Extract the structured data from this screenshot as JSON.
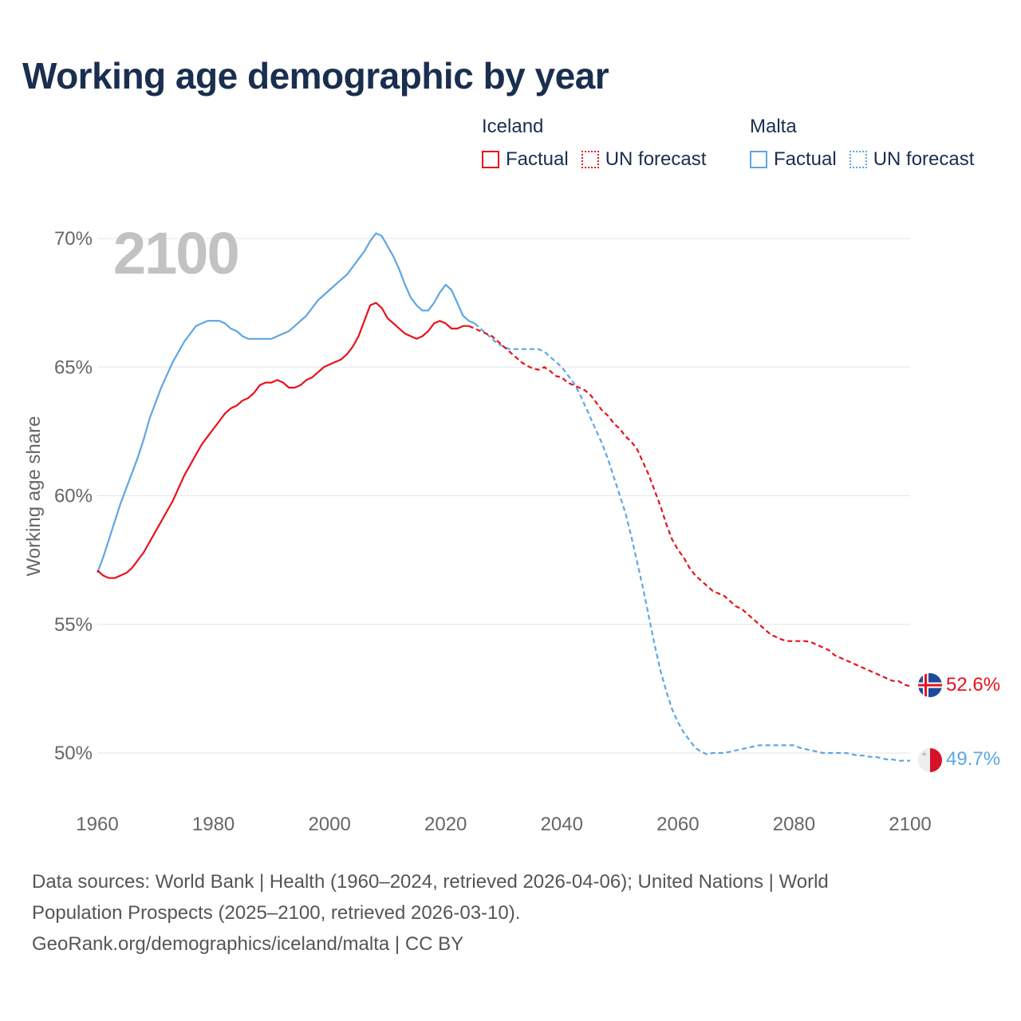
{
  "title": "Working age demographic by year",
  "legend": {
    "groups": [
      {
        "name": "Iceland",
        "color": "#e8111b",
        "items": [
          {
            "label": "Factual",
            "style": "solid"
          },
          {
            "label": "UN forecast",
            "style": "dotted"
          }
        ]
      },
      {
        "name": "Malta",
        "color": "#5ea6e3",
        "items": [
          {
            "label": "Factual",
            "style": "solid"
          },
          {
            "label": "UN forecast",
            "style": "dotted"
          }
        ]
      }
    ]
  },
  "year_watermark": "2100",
  "footer": {
    "line1": "Data sources: World Bank | Health (1960–2024, retrieved 2026-04-06); United Nations | World",
    "line2": "Population Prospects (2025–2100, retrieved 2026-03-10).",
    "line3": "GeoRank.org/demographics/iceland/malta | CC BY"
  },
  "chart_data": {
    "type": "line",
    "title": "Working age demographic by year",
    "xlabel": "",
    "ylabel": "Working age share",
    "xlim": [
      1960,
      2100
    ],
    "ylim": [
      48.5,
      71
    ],
    "x_ticks": [
      1960,
      1980,
      2000,
      2020,
      2040,
      2060,
      2080,
      2100
    ],
    "y_ticks": [
      50,
      55,
      60,
      65,
      70
    ],
    "y_tick_labels": [
      "50%",
      "55%",
      "60%",
      "65%",
      "70%"
    ],
    "grid": true,
    "forecast_start": 2025,
    "series": [
      {
        "name": "Iceland",
        "color": "#e8111b",
        "end_label": "52.6%",
        "factual": [
          [
            1960,
            57.1
          ],
          [
            1961,
            56.9
          ],
          [
            1962,
            56.8
          ],
          [
            1963,
            56.8
          ],
          [
            1964,
            56.9
          ],
          [
            1965,
            57.0
          ],
          [
            1966,
            57.2
          ],
          [
            1967,
            57.5
          ],
          [
            1968,
            57.8
          ],
          [
            1969,
            58.2
          ],
          [
            1970,
            58.6
          ],
          [
            1971,
            59.0
          ],
          [
            1972,
            59.4
          ],
          [
            1973,
            59.8
          ],
          [
            1974,
            60.3
          ],
          [
            1975,
            60.8
          ],
          [
            1976,
            61.2
          ],
          [
            1977,
            61.6
          ],
          [
            1978,
            62.0
          ],
          [
            1979,
            62.3
          ],
          [
            1980,
            62.6
          ],
          [
            1981,
            62.9
          ],
          [
            1982,
            63.2
          ],
          [
            1983,
            63.4
          ],
          [
            1984,
            63.5
          ],
          [
            1985,
            63.7
          ],
          [
            1986,
            63.8
          ],
          [
            1987,
            64.0
          ],
          [
            1988,
            64.3
          ],
          [
            1989,
            64.4
          ],
          [
            1990,
            64.4
          ],
          [
            1991,
            64.5
          ],
          [
            1992,
            64.4
          ],
          [
            1993,
            64.2
          ],
          [
            1994,
            64.2
          ],
          [
            1995,
            64.3
          ],
          [
            1996,
            64.5
          ],
          [
            1997,
            64.6
          ],
          [
            1998,
            64.8
          ],
          [
            1999,
            65.0
          ],
          [
            2000,
            65.1
          ],
          [
            2001,
            65.2
          ],
          [
            2002,
            65.3
          ],
          [
            2003,
            65.5
          ],
          [
            2004,
            65.8
          ],
          [
            2005,
            66.2
          ],
          [
            2006,
            66.8
          ],
          [
            2007,
            67.4
          ],
          [
            2008,
            67.5
          ],
          [
            2009,
            67.3
          ],
          [
            2010,
            66.9
          ],
          [
            2011,
            66.7
          ],
          [
            2012,
            66.5
          ],
          [
            2013,
            66.3
          ],
          [
            2014,
            66.2
          ],
          [
            2015,
            66.1
          ],
          [
            2016,
            66.2
          ],
          [
            2017,
            66.4
          ],
          [
            2018,
            66.7
          ],
          [
            2019,
            66.8
          ],
          [
            2020,
            66.7
          ],
          [
            2021,
            66.5
          ],
          [
            2022,
            66.5
          ],
          [
            2023,
            66.6
          ],
          [
            2024,
            66.6
          ]
        ],
        "forecast": [
          [
            2024,
            66.6
          ],
          [
            2025,
            66.5
          ],
          [
            2026,
            66.4
          ],
          [
            2027,
            66.3
          ],
          [
            2028,
            66.2
          ],
          [
            2029,
            66.0
          ],
          [
            2030,
            65.8
          ],
          [
            2031,
            65.6
          ],
          [
            2032,
            65.4
          ],
          [
            2033,
            65.2
          ],
          [
            2034,
            65.05
          ],
          [
            2035,
            64.95
          ],
          [
            2036,
            64.9
          ],
          [
            2037,
            65.0
          ],
          [
            2038,
            64.85
          ],
          [
            2039,
            64.65
          ],
          [
            2040,
            64.6
          ],
          [
            2041,
            64.4
          ],
          [
            2042,
            64.3
          ],
          [
            2043,
            64.2
          ],
          [
            2044,
            64.1
          ],
          [
            2045,
            63.9
          ],
          [
            2046,
            63.6
          ],
          [
            2047,
            63.3
          ],
          [
            2048,
            63.1
          ],
          [
            2049,
            62.8
          ],
          [
            2050,
            62.6
          ],
          [
            2051,
            62.3
          ],
          [
            2052,
            62.1
          ],
          [
            2053,
            61.8
          ],
          [
            2054,
            61.3
          ],
          [
            2055,
            60.8
          ],
          [
            2056,
            60.2
          ],
          [
            2057,
            59.6
          ],
          [
            2058,
            58.9
          ],
          [
            2059,
            58.3
          ],
          [
            2060,
            57.9
          ],
          [
            2061,
            57.6
          ],
          [
            2062,
            57.2
          ],
          [
            2063,
            56.9
          ],
          [
            2064,
            56.7
          ],
          [
            2065,
            56.5
          ],
          [
            2066,
            56.3
          ],
          [
            2067,
            56.2
          ],
          [
            2068,
            56.1
          ],
          [
            2069,
            55.9
          ],
          [
            2070,
            55.7
          ],
          [
            2071,
            55.6
          ],
          [
            2072,
            55.4
          ],
          [
            2073,
            55.2
          ],
          [
            2074,
            55.0
          ],
          [
            2075,
            54.8
          ],
          [
            2076,
            54.6
          ],
          [
            2077,
            54.5
          ],
          [
            2078,
            54.4
          ],
          [
            2079,
            54.35
          ],
          [
            2080,
            54.35
          ],
          [
            2081,
            54.35
          ],
          [
            2082,
            54.35
          ],
          [
            2083,
            54.3
          ],
          [
            2084,
            54.2
          ],
          [
            2085,
            54.1
          ],
          [
            2086,
            54.0
          ],
          [
            2087,
            53.8
          ],
          [
            2088,
            53.7
          ],
          [
            2089,
            53.6
          ],
          [
            2090,
            53.5
          ],
          [
            2091,
            53.4
          ],
          [
            2092,
            53.3
          ],
          [
            2093,
            53.2
          ],
          [
            2094,
            53.1
          ],
          [
            2095,
            53.0
          ],
          [
            2096,
            52.9
          ],
          [
            2097,
            52.8
          ],
          [
            2098,
            52.8
          ],
          [
            2099,
            52.65
          ],
          [
            2100,
            52.6
          ]
        ]
      },
      {
        "name": "Malta",
        "color": "#5ea6e3",
        "end_label": "49.7%",
        "factual": [
          [
            1960,
            57.0
          ],
          [
            1961,
            57.6
          ],
          [
            1962,
            58.3
          ],
          [
            1963,
            59.0
          ],
          [
            1964,
            59.7
          ],
          [
            1965,
            60.3
          ],
          [
            1966,
            60.9
          ],
          [
            1967,
            61.5
          ],
          [
            1968,
            62.2
          ],
          [
            1969,
            63.0
          ],
          [
            1970,
            63.6
          ],
          [
            1971,
            64.2
          ],
          [
            1972,
            64.7
          ],
          [
            1973,
            65.2
          ],
          [
            1974,
            65.6
          ],
          [
            1975,
            66.0
          ],
          [
            1976,
            66.3
          ],
          [
            1977,
            66.6
          ],
          [
            1978,
            66.7
          ],
          [
            1979,
            66.8
          ],
          [
            1980,
            66.8
          ],
          [
            1981,
            66.8
          ],
          [
            1982,
            66.7
          ],
          [
            1983,
            66.5
          ],
          [
            1984,
            66.4
          ],
          [
            1985,
            66.2
          ],
          [
            1986,
            66.1
          ],
          [
            1987,
            66.1
          ],
          [
            1988,
            66.1
          ],
          [
            1989,
            66.1
          ],
          [
            1990,
            66.1
          ],
          [
            1991,
            66.2
          ],
          [
            1992,
            66.3
          ],
          [
            1993,
            66.4
          ],
          [
            1994,
            66.6
          ],
          [
            1995,
            66.8
          ],
          [
            1996,
            67.0
          ],
          [
            1997,
            67.3
          ],
          [
            1998,
            67.6
          ],
          [
            1999,
            67.8
          ],
          [
            2000,
            68.0
          ],
          [
            2001,
            68.2
          ],
          [
            2002,
            68.4
          ],
          [
            2003,
            68.6
          ],
          [
            2004,
            68.9
          ],
          [
            2005,
            69.2
          ],
          [
            2006,
            69.5
          ],
          [
            2007,
            69.9
          ],
          [
            2008,
            70.2
          ],
          [
            2009,
            70.1
          ],
          [
            2010,
            69.7
          ],
          [
            2011,
            69.3
          ],
          [
            2012,
            68.8
          ],
          [
            2013,
            68.2
          ],
          [
            2014,
            67.7
          ],
          [
            2015,
            67.4
          ],
          [
            2016,
            67.2
          ],
          [
            2017,
            67.2
          ],
          [
            2018,
            67.5
          ],
          [
            2019,
            67.9
          ],
          [
            2020,
            68.2
          ],
          [
            2021,
            68.0
          ],
          [
            2022,
            67.5
          ],
          [
            2023,
            67.0
          ],
          [
            2024,
            66.8
          ],
          [
            2025,
            66.7
          ]
        ],
        "forecast": [
          [
            2025,
            66.7
          ],
          [
            2026,
            66.5
          ],
          [
            2027,
            66.3
          ],
          [
            2028,
            66.1
          ],
          [
            2029,
            65.9
          ],
          [
            2030,
            65.8
          ],
          [
            2031,
            65.7
          ],
          [
            2032,
            65.7
          ],
          [
            2033,
            65.7
          ],
          [
            2034,
            65.7
          ],
          [
            2035,
            65.7
          ],
          [
            2036,
            65.7
          ],
          [
            2037,
            65.6
          ],
          [
            2038,
            65.4
          ],
          [
            2039,
            65.2
          ],
          [
            2040,
            65.0
          ],
          [
            2041,
            64.7
          ],
          [
            2042,
            64.4
          ],
          [
            2043,
            64.0
          ],
          [
            2044,
            63.5
          ],
          [
            2045,
            63.0
          ],
          [
            2046,
            62.5
          ],
          [
            2047,
            62.0
          ],
          [
            2048,
            61.4
          ],
          [
            2049,
            60.7
          ],
          [
            2050,
            60.0
          ],
          [
            2051,
            59.3
          ],
          [
            2052,
            58.4
          ],
          [
            2053,
            57.4
          ],
          [
            2054,
            56.4
          ],
          [
            2055,
            55.3
          ],
          [
            2056,
            54.2
          ],
          [
            2057,
            53.2
          ],
          [
            2058,
            52.4
          ],
          [
            2059,
            51.7
          ],
          [
            2060,
            51.2
          ],
          [
            2061,
            50.8
          ],
          [
            2062,
            50.5
          ],
          [
            2063,
            50.2
          ],
          [
            2064,
            50.05
          ],
          [
            2065,
            49.95
          ],
          [
            2066,
            50.0
          ],
          [
            2067,
            50.0
          ],
          [
            2068,
            50.0
          ],
          [
            2069,
            50.05
          ],
          [
            2070,
            50.1
          ],
          [
            2071,
            50.15
          ],
          [
            2072,
            50.2
          ],
          [
            2073,
            50.25
          ],
          [
            2074,
            50.3
          ],
          [
            2075,
            50.3
          ],
          [
            2076,
            50.3
          ],
          [
            2077,
            50.3
          ],
          [
            2078,
            50.3
          ],
          [
            2079,
            50.3
          ],
          [
            2080,
            50.3
          ],
          [
            2081,
            50.2
          ],
          [
            2082,
            50.15
          ],
          [
            2083,
            50.1
          ],
          [
            2084,
            50.05
          ],
          [
            2085,
            50.0
          ],
          [
            2086,
            50.0
          ],
          [
            2087,
            50.0
          ],
          [
            2088,
            50.0
          ],
          [
            2089,
            50.0
          ],
          [
            2090,
            49.95
          ],
          [
            2091,
            49.9
          ],
          [
            2092,
            49.9
          ],
          [
            2093,
            49.85
          ],
          [
            2094,
            49.85
          ],
          [
            2095,
            49.8
          ],
          [
            2096,
            49.75
          ],
          [
            2097,
            49.75
          ],
          [
            2098,
            49.7
          ],
          [
            2099,
            49.7
          ],
          [
            2100,
            49.7
          ]
        ]
      }
    ]
  }
}
